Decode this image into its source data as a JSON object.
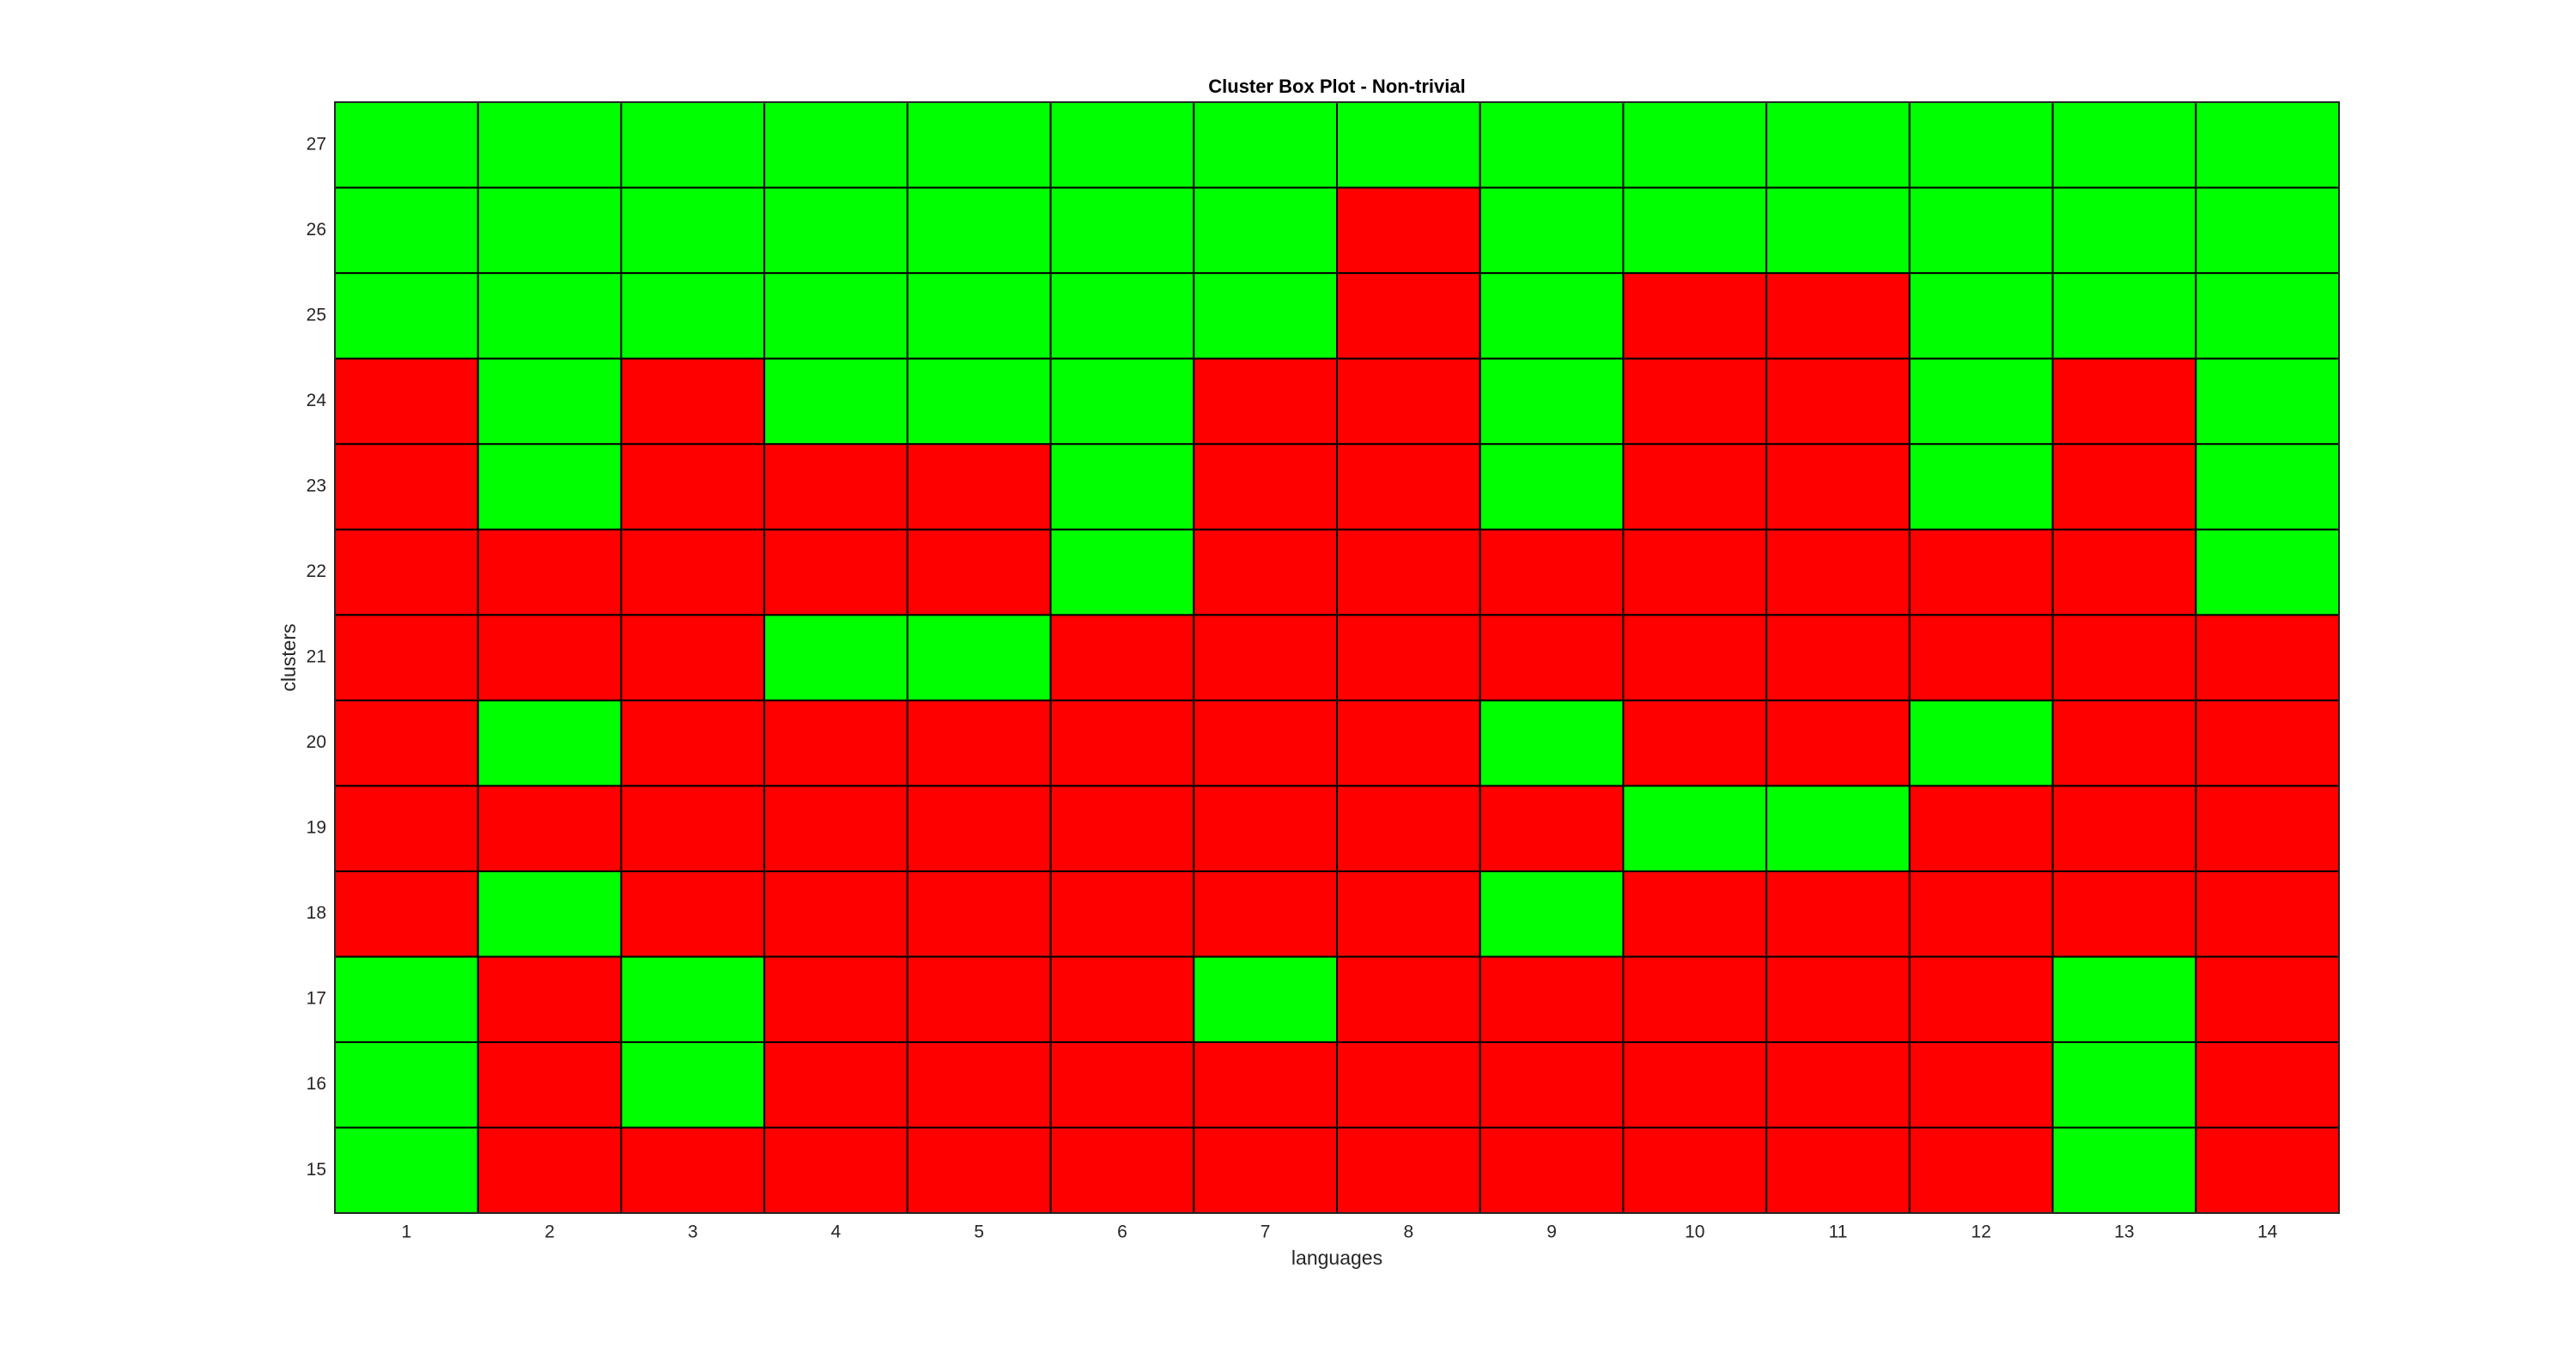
{
  "chart_data": {
    "type": "heatmap",
    "title": "Cluster Box Plot - Non-trivial",
    "xlabel": "languages",
    "ylabel": "clusters",
    "x": [
      1,
      2,
      3,
      4,
      5,
      6,
      7,
      8,
      9,
      10,
      11,
      12,
      13,
      14
    ],
    "y": [
      15,
      16,
      17,
      18,
      19,
      20,
      21,
      22,
      23,
      24,
      25,
      26,
      27
    ],
    "colors": [
      "#ff0000",
      "#00ff00"
    ],
    "values": [
      [
        1,
        0,
        0,
        0,
        0,
        0,
        0,
        0,
        0,
        0,
        0,
        0,
        1,
        0
      ],
      [
        1,
        0,
        1,
        0,
        0,
        0,
        0,
        0,
        0,
        0,
        0,
        0,
        1,
        0
      ],
      [
        1,
        0,
        1,
        0,
        0,
        0,
        1,
        0,
        0,
        0,
        0,
        0,
        1,
        0
      ],
      [
        0,
        1,
        0,
        0,
        0,
        0,
        0,
        0,
        1,
        0,
        0,
        0,
        0,
        0
      ],
      [
        0,
        0,
        0,
        0,
        0,
        0,
        0,
        0,
        0,
        1,
        1,
        0,
        0,
        0
      ],
      [
        0,
        1,
        0,
        0,
        0,
        0,
        0,
        0,
        1,
        0,
        0,
        1,
        0,
        0
      ],
      [
        0,
        0,
        0,
        1,
        1,
        0,
        0,
        0,
        0,
        0,
        0,
        0,
        0,
        0
      ],
      [
        0,
        0,
        0,
        0,
        0,
        1,
        0,
        0,
        0,
        0,
        0,
        0,
        0,
        1
      ],
      [
        0,
        1,
        0,
        0,
        0,
        1,
        0,
        0,
        1,
        0,
        0,
        1,
        0,
        1
      ],
      [
        0,
        1,
        0,
        1,
        1,
        1,
        0,
        0,
        1,
        0,
        0,
        1,
        0,
        1
      ],
      [
        1,
        1,
        1,
        1,
        1,
        1,
        1,
        0,
        1,
        0,
        0,
        1,
        1,
        1
      ],
      [
        1,
        1,
        1,
        1,
        1,
        1,
        1,
        0,
        1,
        1,
        1,
        1,
        1,
        1
      ],
      [
        1,
        1,
        1,
        1,
        1,
        1,
        1,
        1,
        1,
        1,
        1,
        1,
        1,
        1
      ]
    ]
  }
}
